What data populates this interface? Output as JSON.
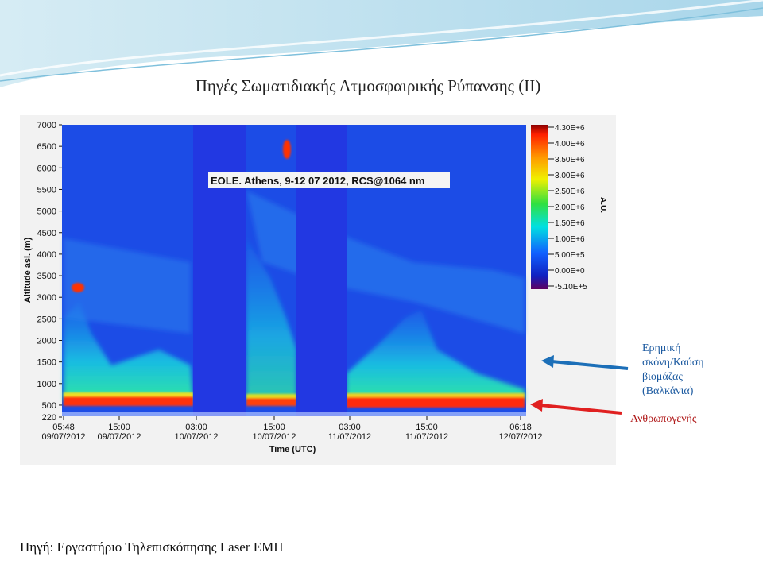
{
  "title": "Πηγές Σωματιδιακής Ατμοσφαιρικής Ρύπανσης (ΙΙ)",
  "figure": {
    "title": "EOLE. Athens, 9-12 07 2012, RCS@1064 nm",
    "y_label": "Altitude asl. (m)",
    "x_label": "Time (UTC)",
    "colorbar_label": "A.U.",
    "yticks": [
      "7000",
      "6500",
      "6000",
      "5500",
      "5000",
      "4500",
      "4000",
      "3500",
      "3000",
      "2500",
      "2000",
      "1500",
      "1000",
      "500",
      "220"
    ],
    "xticks": [
      [
        "05:48",
        "09/07/2012"
      ],
      [
        "15:00",
        "09/07/2012"
      ],
      [
        "03:00",
        "10/07/2012"
      ],
      [
        "15:00",
        "10/07/2012"
      ],
      [
        "03:00",
        "11/07/2012"
      ],
      [
        "15:00",
        "11/07/2012"
      ],
      [
        "06:18",
        "12/07/2012"
      ]
    ],
    "colorbar_ticks": [
      "4.30E+6",
      "4.00E+6",
      "3.50E+6",
      "3.00E+6",
      "2.50E+6",
      "2.00E+6",
      "1.50E+6",
      "1.00E+6",
      "5.00E+5",
      "0.00E+0",
      "-5.10E+5"
    ]
  },
  "annotations": [
    {
      "lines": [
        "Ερημική",
        "σκόνη/Καύση",
        "βιομάζας",
        "(Βαλκάνια)"
      ]
    },
    {
      "lines": [
        "Ανθρωπογενής"
      ]
    }
  ],
  "source": "Πηγή: Εργαστήριο Τηλεπισκόπησης Laser ΕΜΠ"
}
